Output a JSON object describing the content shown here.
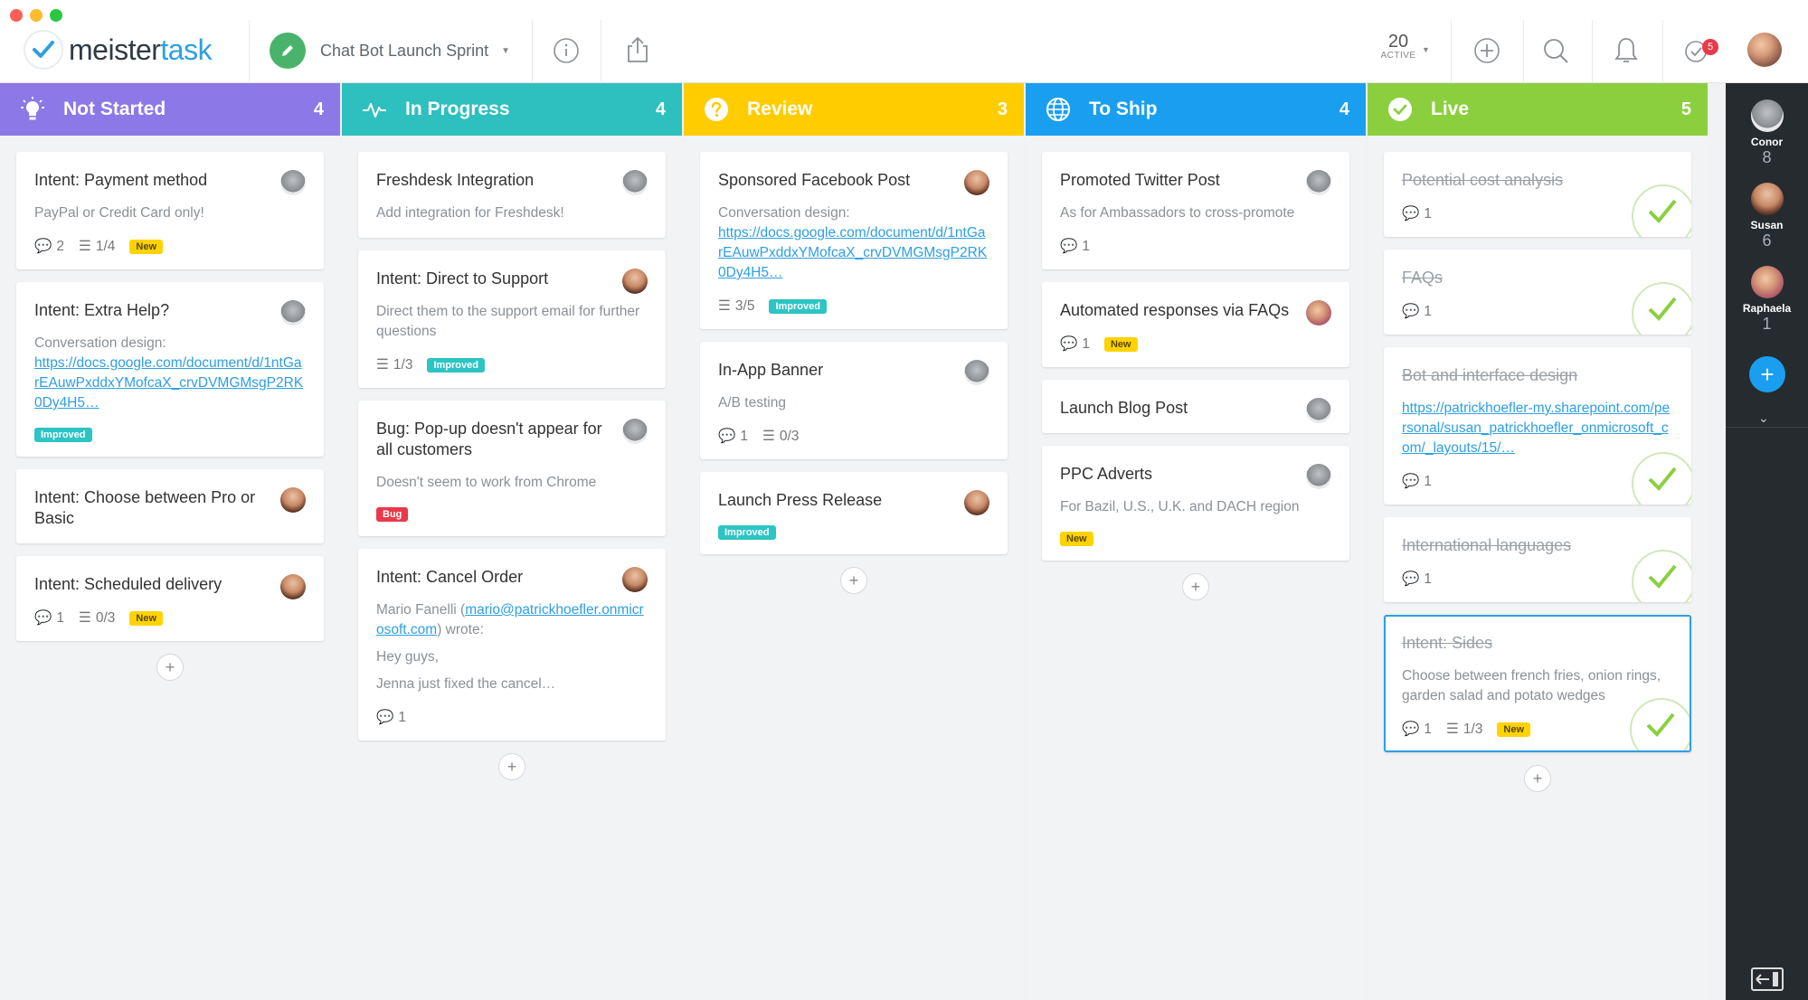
{
  "app": {
    "logo_word_a": "meister",
    "logo_word_b": "task"
  },
  "header": {
    "project_name": "Chat Bot Launch Sprint",
    "active_count": "20",
    "active_label": "ACTIVE",
    "notification_count": "5"
  },
  "columns": [
    {
      "title": "Not Started",
      "count": "4",
      "color": "#8c78e6",
      "icon": "lightbulb-icon",
      "cards": [
        {
          "title": "Intent: Payment method",
          "desc": "PayPal or Credit Card only!",
          "comments": "2",
          "checklist": "1/4",
          "tag": "New"
        },
        {
          "title": "Intent: Extra Help?",
          "desc": "Conversation design:",
          "link": "https://docs.google.com/document/d/1ntGarEAuwPxddxYMofcaX_crvDVMGMsgP2RK0Dy4H5…",
          "tag": "Improved"
        },
        {
          "title": "Intent: Choose between Pro or Basic"
        },
        {
          "title": "Intent: Scheduled delivery",
          "comments": "1",
          "checklist": "0/3",
          "tag": "New"
        }
      ]
    },
    {
      "title": "In Progress",
      "count": "4",
      "color": "#2ebfbf",
      "icon": "pulse-icon",
      "cards": [
        {
          "title": "Freshdesk Integration",
          "desc": "Add integration for Freshdesk!"
        },
        {
          "title": "Intent: Direct to Support",
          "desc": "Direct them to the support email for further questions",
          "checklist": "1/3",
          "tag": "Improved"
        },
        {
          "title": "Bug: Pop-up doesn't appear for all customers",
          "desc": "Doesn't seem to work from Chrome",
          "tag": "Bug"
        },
        {
          "title": "Intent: Cancel Order",
          "desc_a": "Mario Fanelli (",
          "desc_link": "mario@patrickhoefler.onmicrosoft.com",
          "desc_b": ") wrote:",
          "desc_c": "Hey guys,",
          "desc_d": "Jenna just fixed the cancel…",
          "comments": "1"
        }
      ]
    },
    {
      "title": "Review",
      "count": "3",
      "color": "#ffcc00",
      "icon": "question-icon",
      "cards": [
        {
          "title": "Sponsored Facebook Post",
          "desc": "Conversation design:",
          "link": "https://docs.google.com/document/d/1ntGarEAuwPxddxYMofcaX_crvDVMGMsgP2RK0Dy4H5…",
          "checklist": "3/5",
          "tag": "Improved"
        },
        {
          "title": "In-App Banner",
          "desc": "A/B testing",
          "comments": "1",
          "checklist": "0/3"
        },
        {
          "title": "Launch Press Release",
          "tag": "Improved"
        }
      ]
    },
    {
      "title": "To Ship",
      "count": "4",
      "color": "#1a9ff0",
      "icon": "globe-icon",
      "cards": [
        {
          "title": "Promoted Twitter Post",
          "desc": "As for Ambassadors to cross-promote",
          "comments": "1"
        },
        {
          "title": "Automated responses via FAQs",
          "comments": "1",
          "tag": "New"
        },
        {
          "title": "Launch Blog Post"
        },
        {
          "title": "PPC Adverts",
          "desc": "For Bazil, U.S., U.K. and DACH region",
          "tag": "New"
        }
      ]
    },
    {
      "title": "Live",
      "count": "5",
      "color": "#8bcf3f",
      "icon": "check-circle-icon",
      "cards": [
        {
          "title": "Potential cost analysis",
          "comments": "1"
        },
        {
          "title": "FAQs",
          "comments": "1"
        },
        {
          "title": "Bot and interface design",
          "link": "https://patrickhoefler-my.sharepoint.com/personal/susan_patrickhoefler_onmicrosoft_com/_layouts/15/…",
          "comments": "1"
        },
        {
          "title": "International languages",
          "comments": "1"
        },
        {
          "title": "Intent: Sides",
          "desc": "Choose between french fries, onion rings, garden salad and potato wedges",
          "comments": "1",
          "checklist": "1/3",
          "tag": "New"
        }
      ]
    }
  ],
  "sidebar": {
    "people": [
      {
        "name": "Conor",
        "count": "8"
      },
      {
        "name": "Susan",
        "count": "6"
      },
      {
        "name": "Raphaela",
        "count": "1"
      }
    ],
    "add_label": "+"
  },
  "colors": {
    "accent": "#2d9fe3",
    "new_tag": "#ffd300",
    "improved_tag": "#2ec4c4",
    "bug_tag": "#e8394a"
  }
}
